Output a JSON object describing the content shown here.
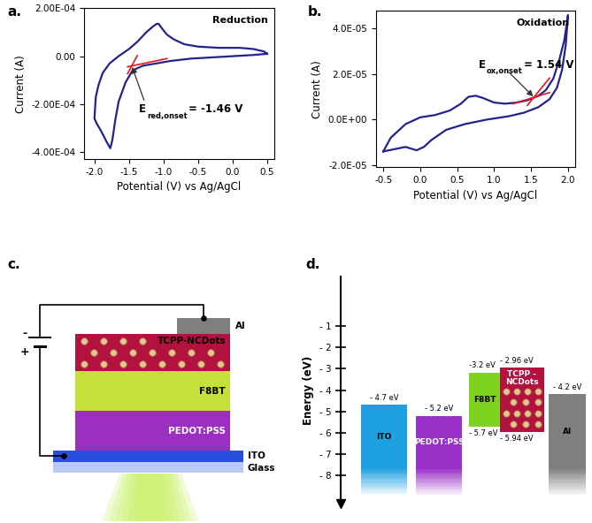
{
  "chart_data": [
    {
      "type": "line",
      "panel_label": "a.",
      "inset_title": "Reduction",
      "x_label": "Potential (V) vs Ag/AgCl",
      "y_label": "Current (A)",
      "xlim": [
        -2.15,
        0.6
      ],
      "ylim": [
        -0.00043,
        0.0002
      ],
      "xticks": [
        -2.0,
        -1.5,
        -1.0,
        -0.5,
        0.0,
        0.5
      ],
      "yticks": [
        {
          "value": -0.0004,
          "label": "-4.00E-04"
        },
        {
          "value": -0.0002,
          "label": "-2.00E-04"
        },
        {
          "value": 0,
          "label": "0.00"
        },
        {
          "value": 0.0002,
          "label": "2.00E-04"
        }
      ],
      "series": [
        {
          "color": "#23238e",
          "x": [
            0.5,
            0.3,
            0.0,
            -0.3,
            -0.6,
            -0.9,
            -1.1,
            -1.3,
            -1.45,
            -1.55,
            -1.65,
            -1.7,
            -1.74,
            -1.77,
            -1.82,
            -1.9,
            -1.97,
            -2.0,
            -1.98,
            -1.94,
            -1.88,
            -1.78,
            -1.65,
            -1.5,
            -1.38,
            -1.25,
            -1.15,
            -1.1,
            -1.07,
            -1.02,
            -0.95,
            -0.85,
            -0.7,
            -0.5,
            -0.2,
            0.1,
            0.3,
            0.45,
            0.5
          ],
          "values": [
            1e-05,
            5e-06,
            0.0,
            -5e-06,
            -1e-05,
            -2e-05,
            -3e-05,
            -4e-05,
            -6e-05,
            -0.00011,
            -0.00019,
            -0.00027,
            -0.00035,
            -0.000385,
            -0.00036,
            -0.000315,
            -0.00028,
            -0.00026,
            -0.00017,
            -0.00012,
            -7e-05,
            -3e-05,
            0.0,
            3e-05,
            6e-05,
            0.0001,
            0.000125,
            0.000135,
            0.000135,
            0.000115,
            9e-05,
            7e-05,
            5e-05,
            4e-05,
            3.5e-05,
            3.5e-05,
            3e-05,
            2e-05,
            1e-05
          ]
        },
        {
          "color": "#e8141c",
          "x": [
            -1.52,
            -0.95
          ],
          "values": [
            -4.44e-05,
            -1e-05
          ]
        },
        {
          "color": "#e8141c",
          "x": [
            -1.52,
            -1.38
          ],
          "values": [
            -7.3e-05,
            2.3e-06
          ]
        }
      ],
      "annotations": [
        {
          "symbol": "E",
          "subscript": "red,onset",
          "text": "= -1.46 V",
          "x": -1.46,
          "y": -4.04e-05
        }
      ]
    },
    {
      "type": "line",
      "panel_label": "b.",
      "inset_title": "Oxidation",
      "x_label": "Potential (V) vs Ag/AgCl",
      "y_label": "Current (A)",
      "xlim": [
        -0.6,
        2.1
      ],
      "ylim": [
        -2.1e-05,
        4.8e-05
      ],
      "xticks": [
        -0.5,
        0.0,
        0.5,
        1.0,
        1.5,
        2.0
      ],
      "yticks": [
        {
          "value": -2e-05,
          "label": "-2.0E-05"
        },
        {
          "value": 0,
          "label": "0.0E+00"
        },
        {
          "value": 2e-05,
          "label": "2.0E-05"
        },
        {
          "value": 4e-05,
          "label": "4.0E-05"
        }
      ],
      "series": [
        {
          "color": "#23238e",
          "x": [
            -0.5,
            -0.4,
            -0.2,
            0.0,
            0.2,
            0.4,
            0.55,
            0.65,
            0.75,
            0.85,
            1.0,
            1.15,
            1.3,
            1.45,
            1.6,
            1.7,
            1.8,
            1.88,
            1.95,
            2.0,
            1.97,
            1.92,
            1.85,
            1.75,
            1.6,
            1.4,
            1.2,
            0.9,
            0.6,
            0.35,
            0.15,
            0.05,
            -0.05,
            -0.2,
            -0.35,
            -0.5
          ],
          "values": [
            -1.4e-05,
            -8e-06,
            -2e-06,
            1e-06,
            2e-06,
            4e-06,
            7e-06,
            1e-05,
            1.05e-05,
            9.5e-06,
            7.5e-06,
            7e-06,
            7.5e-06,
            8.5e-06,
            1.05e-05,
            1.3e-05,
            1.8e-05,
            2.6e-05,
            3.5e-05,
            4.6e-05,
            3.3e-05,
            2.2e-05,
            1.4e-05,
            9e-06,
            5.5e-06,
            3e-06,
            1.5e-06,
            0.0,
            -2e-06,
            -4.5e-06,
            -9e-06,
            -1.2e-05,
            -1.35e-05,
            -1.2e-05,
            -1.3e-05,
            -1.4e-05
          ]
        },
        {
          "color": "#e8141c",
          "x": [
            1.25,
            1.75
          ],
          "values": [
            6.9e-06,
            1.19e-05
          ]
        },
        {
          "color": "#e8141c",
          "x": [
            1.45,
            1.75
          ],
          "values": [
            6.3e-06,
            1.83e-05
          ]
        }
      ],
      "annotations": [
        {
          "symbol": "E",
          "subscript": "ox,onset",
          "text": "= 1.54 V",
          "x": 1.54,
          "y": 9.8e-06
        }
      ]
    }
  ],
  "diagrams": [
    {
      "panel_label": "c.",
      "layers": [
        {
          "name": "Al",
          "color": "#7f7f7f"
        },
        {
          "name": "TCPP-NCDots",
          "color": "#b3123f",
          "particles": true
        },
        {
          "name": "F8BT",
          "color": "#c6e03a"
        },
        {
          "name": "PEDOT:PSS",
          "color": "#9b2fc0"
        },
        {
          "name": "ITO",
          "color": "#2a4fe0"
        },
        {
          "name": "Glass",
          "color": "#b9c8f5"
        }
      ],
      "terminals": {
        "negative": "-",
        "positive": "+"
      }
    },
    {
      "panel_label": "d.",
      "y_label": "Energy (eV)",
      "ylim": [
        -9.3,
        1.3
      ],
      "yticks": [
        {
          "value": -1,
          "label": "- 1"
        },
        {
          "value": -2,
          "label": "- 2"
        },
        {
          "value": -3,
          "label": "- 3"
        },
        {
          "value": -4,
          "label": "- 4"
        },
        {
          "value": -5,
          "label": "- 5"
        },
        {
          "value": -6,
          "label": "- 6"
        },
        {
          "value": -7,
          "label": "- 7"
        },
        {
          "value": -8,
          "label": "- 8"
        }
      ],
      "layers": [
        {
          "name": "ITO",
          "color": "#1fa0e0",
          "top": -4.7,
          "top_label": "- 4.7 eV"
        },
        {
          "name": "PEDOT:PSS",
          "color": "#9b30c8",
          "top": -5.2,
          "top_label": "- 5.2 eV"
        },
        {
          "name": "F8BT",
          "color": "#7ed321",
          "top": -3.2,
          "top_label": "-3.2 eV",
          "bottom": -5.7,
          "bottom_label": "- 5.7 eV"
        },
        {
          "name": "TCPP -\nNCDots",
          "color": "#b3123f",
          "particles": true,
          "top": -2.96,
          "top_label": "- 2.96 eV",
          "bottom": -5.94,
          "bottom_label": "- 5.94 eV"
        },
        {
          "name": "Al",
          "color": "#7f7f7f",
          "top": -4.2,
          "top_label": "- 4.2 eV"
        }
      ]
    }
  ]
}
